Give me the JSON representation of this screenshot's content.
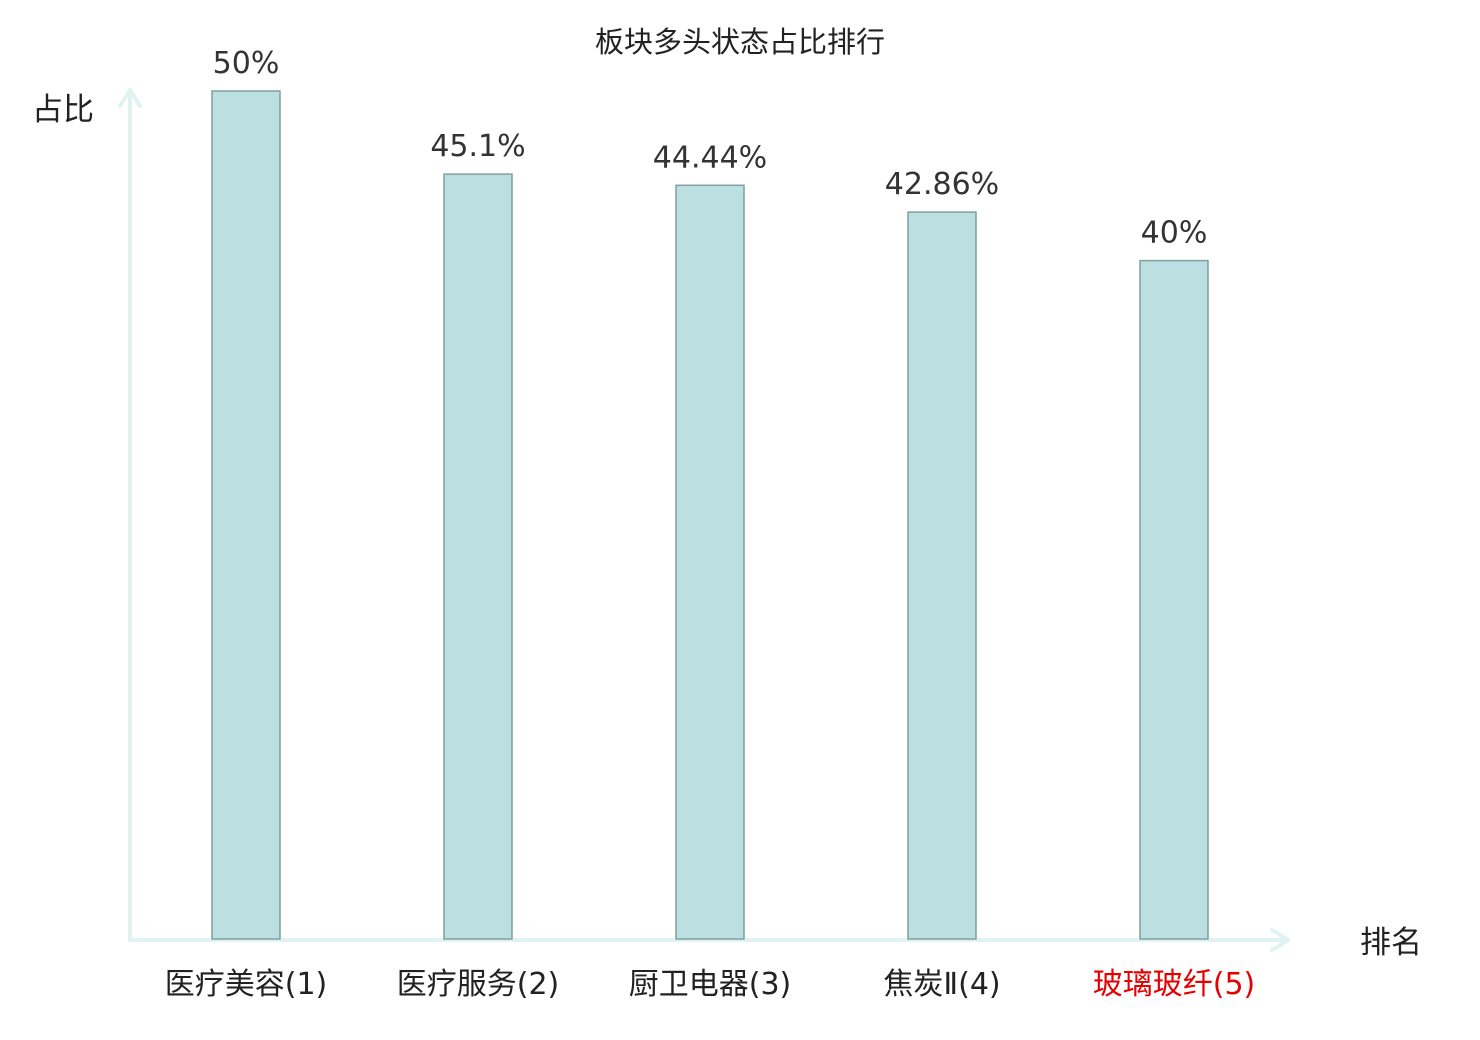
{
  "chart_data": {
    "type": "bar",
    "title": "板块多头状态占比排行",
    "xlabel": "排名",
    "ylabel": "占比",
    "categories": [
      {
        "name": "医疗美容",
        "rank": "(1)",
        "highlight": false
      },
      {
        "name": "医疗服务",
        "rank": "(2)",
        "highlight": false
      },
      {
        "name": "厨卫电器",
        "rank": "(3)",
        "highlight": false
      },
      {
        "name": "焦炭Ⅱ",
        "rank": "(4)",
        "highlight": false
      },
      {
        "name": "玻璃玻纤",
        "rank": "(5)",
        "highlight": true
      }
    ],
    "values": [
      50,
      45.1,
      44.44,
      42.86,
      40
    ],
    "value_labels": [
      "50%",
      "45.1%",
      "44.44%",
      "42.86%",
      "40%"
    ],
    "ylim": [
      0,
      50
    ],
    "grid": false,
    "legend": "none"
  },
  "colors": {
    "bar_fill": "#bce0e1",
    "bar_stroke": "#7f9fa0",
    "axis": "#e0f3f1",
    "text": "#222222",
    "value_text": "#333333",
    "highlight_text": "#e60000"
  }
}
